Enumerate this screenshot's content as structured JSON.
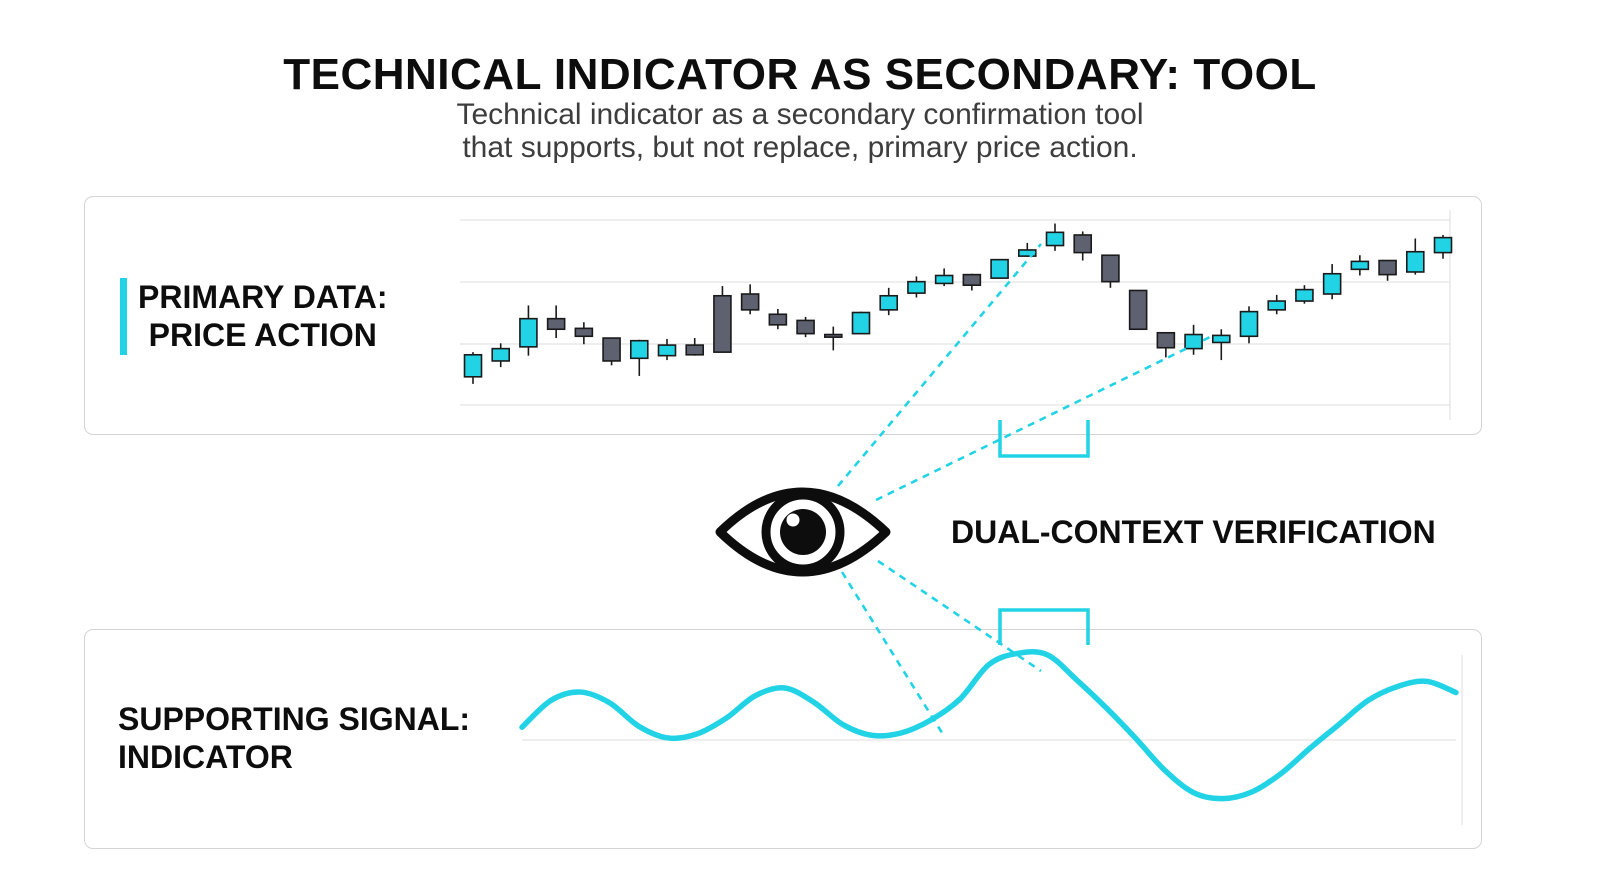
{
  "header": {
    "title": "TECHNICAL INDICATOR AS  SECONDARY: TOOL",
    "subtitle_line1": "Technical indicator as a secondary confirmation tool",
    "subtitle_line2": "that supports, but not replace, primary price action."
  },
  "price_panel": {
    "label_line1": "PRIMARY DATA:",
    "label_line2": "PRICE ACTION"
  },
  "indicator_panel": {
    "label_line1": "SUPPORTING SIGNAL:",
    "label_line2": "INDICATOR"
  },
  "center": {
    "label": "DUAL-CONTEXT VERIFICATION",
    "icon": "eye-icon"
  },
  "colors": {
    "accent": "#22d3e6",
    "bear": "#5e6170",
    "text": "#0d0d0d"
  },
  "chart_data": {
    "type": "candlestick",
    "candles": [
      {
        "open": 3.2,
        "close": 5.7,
        "high": 6.0,
        "low": 2.4
      },
      {
        "open": 5.0,
        "close": 6.4,
        "high": 7.0,
        "low": 4.3
      },
      {
        "open": 6.6,
        "close": 9.8,
        "high": 11.3,
        "low": 5.6
      },
      {
        "open": 9.8,
        "close": 8.6,
        "high": 11.3,
        "low": 7.6
      },
      {
        "open": 8.7,
        "close": 7.8,
        "high": 9.4,
        "low": 6.9
      },
      {
        "open": 7.6,
        "close": 5.0,
        "high": 7.6,
        "low": 4.5
      },
      {
        "open": 5.3,
        "close": 7.3,
        "high": 7.4,
        "low": 3.3
      },
      {
        "open": 5.6,
        "close": 6.8,
        "high": 7.5,
        "low": 5.1
      },
      {
        "open": 6.8,
        "close": 5.7,
        "high": 7.6,
        "low": 5.6
      },
      {
        "open": 12.4,
        "close": 6.0,
        "high": 13.5,
        "low": 6.0
      },
      {
        "open": 12.6,
        "close": 10.8,
        "high": 13.7,
        "low": 10.3
      },
      {
        "open": 10.3,
        "close": 9.1,
        "high": 10.9,
        "low": 8.6
      },
      {
        "open": 9.6,
        "close": 8.1,
        "high": 10.0,
        "low": 7.7
      },
      {
        "open": 8.0,
        "close": 7.7,
        "high": 8.9,
        "low": 6.2
      },
      {
        "open": 8.1,
        "close": 10.5,
        "high": 10.6,
        "low": 8.1
      },
      {
        "open": 10.8,
        "close": 12.4,
        "high": 13.3,
        "low": 10.2
      },
      {
        "open": 12.7,
        "close": 14.0,
        "high": 14.6,
        "low": 12.2
      },
      {
        "open": 13.8,
        "close": 14.7,
        "high": 15.5,
        "low": 13.5
      },
      {
        "open": 14.8,
        "close": 13.6,
        "high": 14.9,
        "low": 13.0
      },
      {
        "open": 14.4,
        "close": 16.5,
        "high": 16.5,
        "low": 14.4
      },
      {
        "open": 16.9,
        "close": 17.6,
        "high": 18.4,
        "low": 16.8
      },
      {
        "open": 18.1,
        "close": 19.6,
        "high": 20.6,
        "low": 17.5
      },
      {
        "open": 19.3,
        "close": 17.3,
        "high": 19.7,
        "low": 16.4
      },
      {
        "open": 17.0,
        "close": 14.0,
        "high": 17.0,
        "low": 13.3
      },
      {
        "open": 13.0,
        "close": 8.6,
        "high": 13.0,
        "low": 8.6
      },
      {
        "open": 8.2,
        "close": 6.5,
        "high": 8.2,
        "low": 5.4
      },
      {
        "open": 6.4,
        "close": 8.0,
        "high": 9.1,
        "low": 5.7
      },
      {
        "open": 7.1,
        "close": 7.9,
        "high": 8.6,
        "low": 5.1
      },
      {
        "open": 7.8,
        "close": 10.6,
        "high": 11.2,
        "low": 7.0
      },
      {
        "open": 10.8,
        "close": 11.8,
        "high": 12.5,
        "low": 10.3
      },
      {
        "open": 11.8,
        "close": 13.1,
        "high": 13.6,
        "low": 11.5
      },
      {
        "open": 12.6,
        "close": 14.9,
        "high": 16.0,
        "low": 12.0
      },
      {
        "open": 15.4,
        "close": 16.3,
        "high": 17.0,
        "low": 14.7
      },
      {
        "open": 16.4,
        "close": 14.8,
        "high": 16.4,
        "low": 14.1
      },
      {
        "open": 15.1,
        "close": 17.4,
        "high": 18.9,
        "low": 14.8
      },
      {
        "open": 17.3,
        "close": 19.0,
        "high": 19.3,
        "low": 16.6
      }
    ],
    "ylim": [
      0,
      21
    ],
    "grid": true,
    "indicator": {
      "type": "line",
      "y": [
        0.25,
        0.78,
        0.94,
        0.73,
        0.27,
        0.04,
        0.12,
        0.43,
        0.87,
        1.02,
        0.74,
        0.3,
        0.09,
        0.14,
        0.39,
        0.8,
        1.48,
        1.7,
        1.67,
        1.18,
        0.64,
        0.05,
        -0.58,
        -1.03,
        -1.15,
        -1.02,
        -0.66,
        -0.16,
        0.31,
        0.78,
        1.05,
        1.15,
        0.93
      ],
      "ylim": [
        -1.2,
        1.8
      ],
      "baseline": 0
    }
  }
}
